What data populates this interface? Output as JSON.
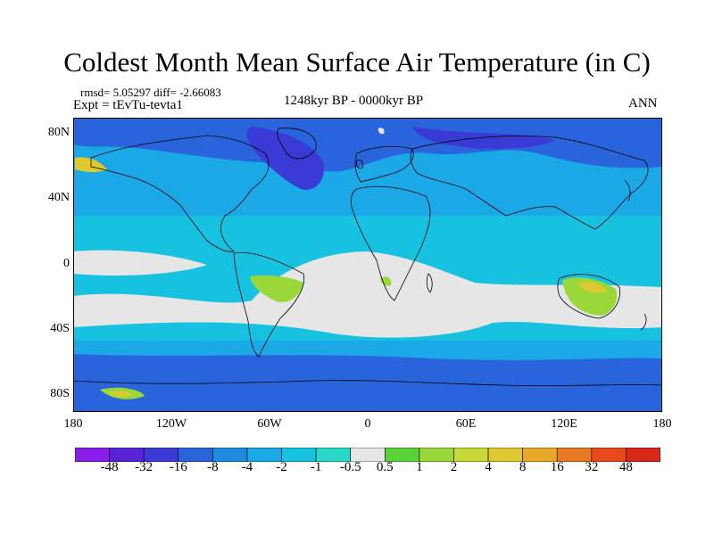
{
  "title": "Coldest Month Mean Surface Air Temperature (in C)",
  "info_line1": "rmsd= 5.05297 diff= -2.66083",
  "info_line2": "Expt = tEvTu-tevta1",
  "period": "1248kyr BP - 0000kyr BP",
  "season": "ANN",
  "axes": {
    "lat_labels": [
      "80N",
      "40N",
      "0",
      "40S",
      "80S"
    ],
    "lon_labels": [
      "180",
      "120W",
      "60W",
      "0",
      "60E",
      "120E",
      "180"
    ]
  },
  "colorbar": {
    "labels": [
      "-48",
      "-32",
      "-16",
      "-8",
      "-4",
      "-2",
      "-1",
      "-0.5",
      "0.5",
      "1",
      "2",
      "4",
      "8",
      "16",
      "32",
      "48"
    ],
    "colors": [
      "#8a1ee8",
      "#5a22d8",
      "#3a3ad6",
      "#2a64dc",
      "#1f8be0",
      "#1aa8e6",
      "#16c2e0",
      "#2ad8c8",
      "#e6e6e6",
      "#5ad23a",
      "#9ad83a",
      "#c8d836",
      "#e0c830",
      "#e8a828",
      "#e87822",
      "#e8481a",
      "#d8281a"
    ]
  },
  "palette": {
    "ocean_base": "#1aa8e6",
    "near_zero": "#e6e6e6",
    "cyan": "#16c2e0",
    "strong_cool": "#2a64dc",
    "very_cool": "#3a3ad6",
    "warm": "#9ad83a",
    "hot": "#e0c830",
    "coast": "#000000"
  }
}
